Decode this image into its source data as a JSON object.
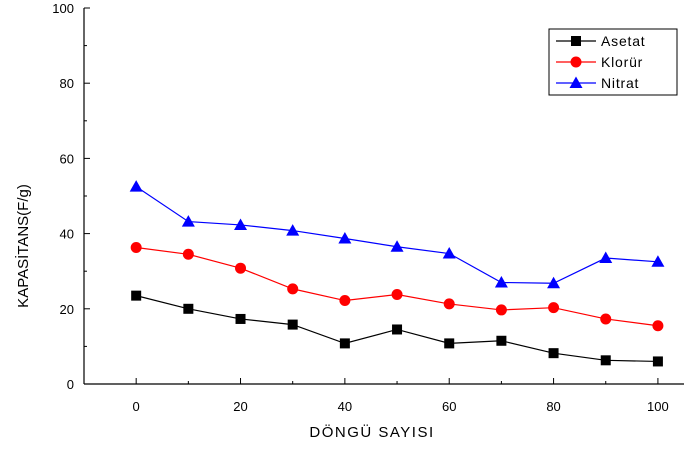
{
  "chart_data": {
    "type": "line",
    "xlabel": "DÖNGÜ SAYISI",
    "ylabel": "KAPASİTANS(F/g)",
    "xlim": [
      -10,
      105
    ],
    "ylim": [
      0,
      100
    ],
    "xticks": [
      0,
      20,
      40,
      60,
      80,
      100
    ],
    "yticks": [
      0,
      20,
      40,
      60,
      80,
      100
    ],
    "grid": false,
    "legend_position": "top-right",
    "x": [
      0,
      10,
      20,
      30,
      40,
      50,
      60,
      70,
      80,
      90,
      100
    ],
    "series": [
      {
        "name": "Asetat",
        "color": "#000000",
        "marker": "square",
        "values": [
          23.5,
          20,
          17.3,
          15.8,
          10.8,
          14.5,
          10.8,
          11.5,
          8.2,
          6.3,
          6
        ]
      },
      {
        "name": "Klorür",
        "color": "#ff0000",
        "marker": "circle",
        "values": [
          36.3,
          34.5,
          30.8,
          25.3,
          22.2,
          23.8,
          21.3,
          19.7,
          20.3,
          17.3,
          15.5
        ]
      },
      {
        "name": "Nitrat",
        "color": "#0000ff",
        "marker": "triangle",
        "values": [
          52.5,
          43.2,
          42.3,
          40.8,
          38.7,
          36.5,
          34.7,
          27,
          26.8,
          33.5,
          32.5
        ]
      }
    ]
  }
}
